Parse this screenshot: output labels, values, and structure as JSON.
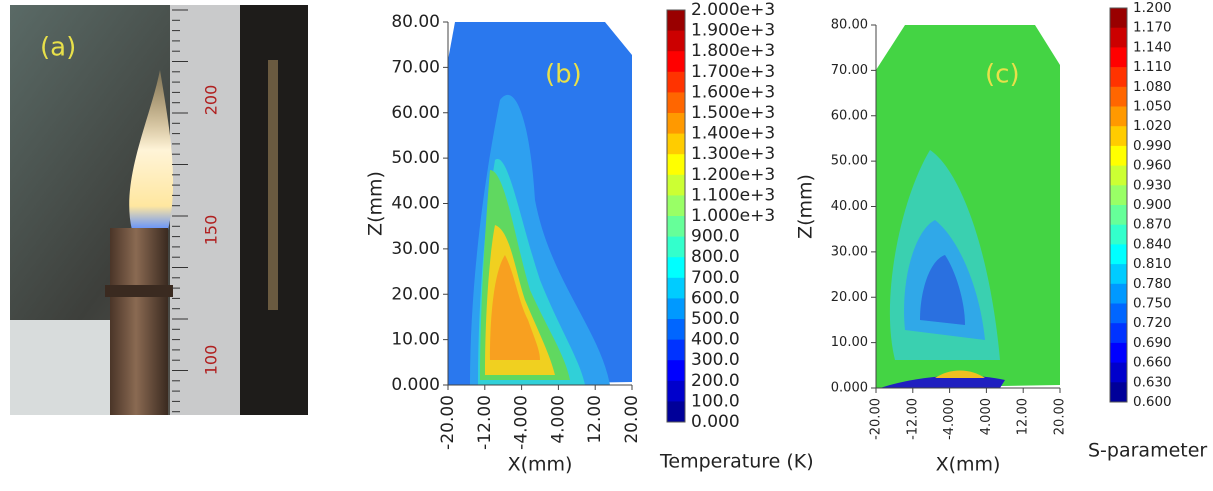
{
  "panel_a": {
    "label": "(a)",
    "ruler_labels": [
      "200",
      "150",
      "100"
    ]
  },
  "panel_b": {
    "label": "(b)",
    "x_label": "X(mm)",
    "y_label": "Z(mm)",
    "x_ticks": [
      "-20.00",
      "-12.00",
      "-4.000",
      "4.000",
      "12.00",
      "20.00"
    ],
    "y_ticks": [
      "0.000",
      "10.00",
      "20.00",
      "30.00",
      "40.00",
      "50.00",
      "60.00",
      "70.00",
      "80.00"
    ],
    "colorbar_title": "Temperature (K)",
    "colorbar_labels": [
      "2.000e+3",
      "1.900e+3",
      "1.800e+3",
      "1.700e+3",
      "1.600e+3",
      "1.500e+3",
      "1.400e+3",
      "1.300e+3",
      "1.200e+3",
      "1.100e+3",
      "1.000e+3",
      "900.0",
      "800.0",
      "700.0",
      "600.0",
      "500.0",
      "400.0",
      "300.0",
      "200.0",
      "100.0",
      "0.000"
    ]
  },
  "panel_c": {
    "label": "(c)",
    "x_label": "X(mm)",
    "y_label": "Z(mm)",
    "x_ticks": [
      "-20.00",
      "-12.00",
      "-4.000",
      "4.000",
      "12.00",
      "20.00"
    ],
    "y_ticks": [
      "0.000",
      "10.00",
      "20.00",
      "30.00",
      "40.00",
      "50.00",
      "60.00",
      "70.00",
      "80.00"
    ],
    "colorbar_title": "S-parameter",
    "colorbar_labels": [
      "1.200",
      "1.170",
      "1.140",
      "1.110",
      "1.080",
      "1.050",
      "1.020",
      "0.990",
      "0.960",
      "0.930",
      "0.900",
      "0.870",
      "0.840",
      "0.810",
      "0.780",
      "0.750",
      "0.720",
      "0.690",
      "0.660",
      "0.630",
      "0.600"
    ]
  }
}
